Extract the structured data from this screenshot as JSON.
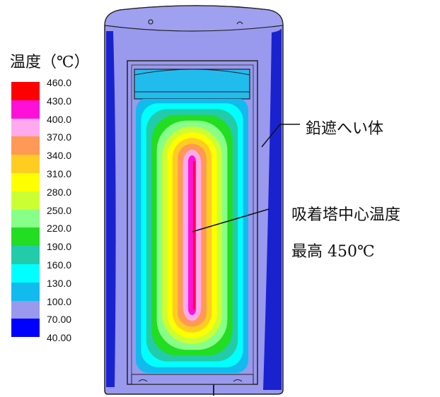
{
  "legend": {
    "title": "温度（℃）",
    "entries": [
      {
        "label": "460.0",
        "color": "#ff0000"
      },
      {
        "label": "430.0",
        "color": "#ff10d8"
      },
      {
        "label": "400.0",
        "color": "#ffaaee"
      },
      {
        "label": "370.0",
        "color": "#ff9955"
      },
      {
        "label": "340.0",
        "color": "#ffcc22"
      },
      {
        "label": "310.0",
        "color": "#ffff00"
      },
      {
        "label": "280.0",
        "color": "#ccff33"
      },
      {
        "label": "250.0",
        "color": "#88ff88"
      },
      {
        "label": "220.0",
        "color": "#22dd22"
      },
      {
        "label": "190.0",
        "color": "#22ccaa"
      },
      {
        "label": "160.0",
        "color": "#00ffff"
      },
      {
        "label": "130.0",
        "color": "#11bbee"
      },
      {
        "label": "100.0",
        "color": "#9999ee"
      },
      {
        "label": "70.00",
        "color": "#0000ff"
      },
      {
        "label": "40.00",
        "color": ""
      }
    ]
  },
  "annotations": {
    "shield": "鉛遮へい体",
    "center_temp_line1": "吸着塔中心温度",
    "center_temp_line2": "最高 450℃"
  },
  "colors": {
    "shield_body": "#9999ee",
    "shield_edge": "#1a22d0",
    "lid": "#22bbee",
    "outline": "#222222"
  }
}
